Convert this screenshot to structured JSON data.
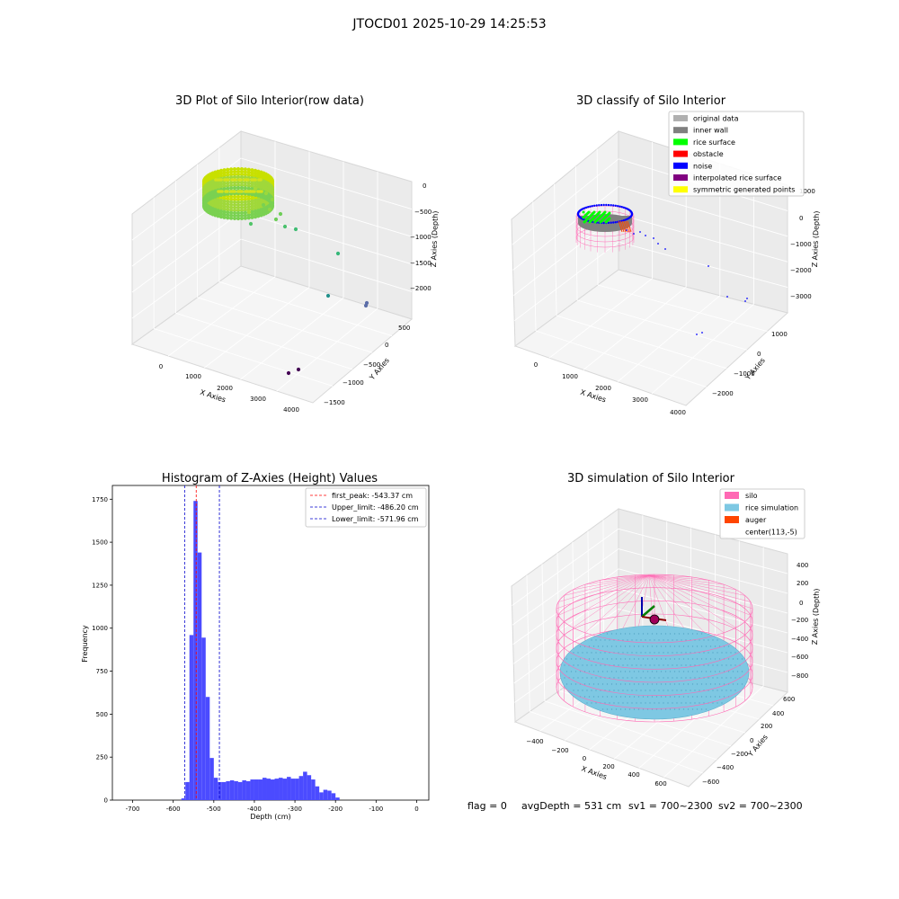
{
  "figure": {
    "suptitle": "JTOCD01 2025-10-29 14:25:53",
    "status": {
      "flag": "flag = 0",
      "avg_depth": "avgDepth = 531 cm",
      "sv1": "sv1 = 700~2300",
      "sv2": "sv2 = 700~2300"
    }
  },
  "colors": {
    "hist_bar": "#4b4bff",
    "first_peak": "#ff0000",
    "limit": "#0000cc",
    "silo": "#ff69b4",
    "rice_sim": "#7ec8e3",
    "auger": "#ff4500",
    "original": "#b0b0b0",
    "inner_wall": "#808080",
    "rice_surface": "#00ff00",
    "obstacle": "#ff0000",
    "noise": "#0000ff",
    "interp": "#800080",
    "symmetric": "#ffff00"
  },
  "chart_data": [
    {
      "type": "scatter",
      "subtype": "3d",
      "title": "3D Plot of Silo Interior(row data)",
      "xlabel": "X Axies",
      "ylabel": "Y Axies",
      "zlabel": "Z Axies (Depth)",
      "x_ticks": [
        "0",
        "1000",
        "2000",
        "3000",
        "4000"
      ],
      "y_ticks": [
        "500",
        "0",
        "−500",
        "−1000",
        "−1500"
      ],
      "z_ticks": [
        "0",
        "−500",
        "−1000",
        "−1500",
        "−2000"
      ]
    },
    {
      "type": "scatter",
      "subtype": "3d",
      "title": "3D classify of Silo Interior",
      "xlabel": "X Axies",
      "ylabel": "Y Axies",
      "zlabel": "Z Axies (Depth)",
      "x_ticks": [
        "0",
        "1000",
        "2000",
        "3000",
        "4000"
      ],
      "y_ticks": [
        "1000",
        "0",
        "−1000",
        "−2000"
      ],
      "z_ticks": [
        "1000",
        "0",
        "−1000",
        "−2000",
        "−3000"
      ],
      "legend": [
        "original data",
        "inner wall",
        "rice surface",
        "obstacle",
        "noise",
        "interpolated rice surface",
        "symmetric generated points"
      ],
      "legend_position": "top-right"
    },
    {
      "type": "bar",
      "subtype": "histogram",
      "title": "Histogram of Z-Axies (Height) Values",
      "xlabel": "Depth (cm)",
      "ylabel": "Frequency",
      "xlim": [
        -750,
        30
      ],
      "ylim": [
        0,
        1830
      ],
      "bin_width": 10,
      "bin_start": -580,
      "x_ticks": [
        -700,
        -600,
        -500,
        -400,
        -300,
        -200,
        -100,
        0
      ],
      "y_ticks": [
        0,
        250,
        500,
        750,
        1000,
        1250,
        1500,
        1750
      ],
      "values": [
        10,
        105,
        960,
        1740,
        1440,
        945,
        600,
        245,
        130,
        105,
        105,
        110,
        115,
        110,
        105,
        115,
        110,
        120,
        120,
        120,
        130,
        125,
        120,
        125,
        130,
        125,
        135,
        125,
        125,
        140,
        165,
        145,
        120,
        80,
        45,
        60,
        55,
        40,
        15
      ],
      "vlines": [
        {
          "label": "first_peak: -543.37 cm",
          "x": -543.37,
          "color": "#ff0000"
        },
        {
          "label": "Upper_limit: -486.20 cm",
          "x": -486.2,
          "color": "#0000cc"
        },
        {
          "label": "Lower_limit: -571.96 cm",
          "x": -571.96,
          "color": "#0000cc"
        }
      ],
      "legend_position": "top-right"
    },
    {
      "type": "scatter",
      "subtype": "3d",
      "title": "3D simulation of Silo Interior",
      "xlabel": "X Axies",
      "ylabel": "Y Axies",
      "zlabel": "Z Axies (Depth)",
      "x_ticks": [
        "−400",
        "−200",
        "0",
        "200",
        "400",
        "600"
      ],
      "y_ticks": [
        "600",
        "400",
        "200",
        "0",
        "−200",
        "−400",
        "−600"
      ],
      "z_ticks": [
        "400",
        "200",
        "0",
        "−200",
        "−400",
        "−600",
        "−800"
      ],
      "legend": [
        "silo",
        "rice simulation",
        "auger",
        "center(113,-5)"
      ],
      "legend_position": "top-right"
    }
  ]
}
